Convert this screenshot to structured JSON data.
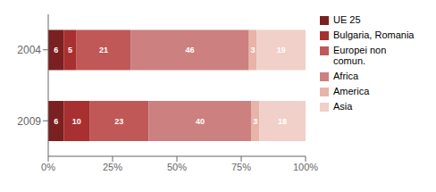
{
  "chart_data": {
    "type": "bar",
    "orientation": "horizontal",
    "stacked": true,
    "data_labels": true,
    "legend": "right",
    "grid": false,
    "categories": [
      "2004",
      "2009"
    ],
    "series": [
      {
        "name": "UE 25",
        "color": "#7B2020",
        "values": [
          6,
          6
        ]
      },
      {
        "name": "Bulgaria, Romania",
        "color": "#A83030",
        "values": [
          5,
          10
        ]
      },
      {
        "name": "Europei non\ncomun.",
        "color": "#C05858",
        "values": [
          21,
          23
        ]
      },
      {
        "name": "Africa",
        "color": "#CC8080",
        "values": [
          46,
          40
        ]
      },
      {
        "name": "America",
        "color": "#E8B4A8",
        "values": [
          3,
          3
        ]
      },
      {
        "name": "Asia",
        "color": "#F0D0C8",
        "values": [
          19,
          18
        ]
      }
    ],
    "xlim": [
      0,
      100
    ],
    "xticks": [
      {
        "value": 0,
        "label": "0%"
      },
      {
        "value": 25,
        "label": "25%"
      },
      {
        "value": 50,
        "label": "50%"
      },
      {
        "value": 75,
        "label": "75%"
      },
      {
        "value": 100,
        "label": "100%"
      }
    ]
  }
}
